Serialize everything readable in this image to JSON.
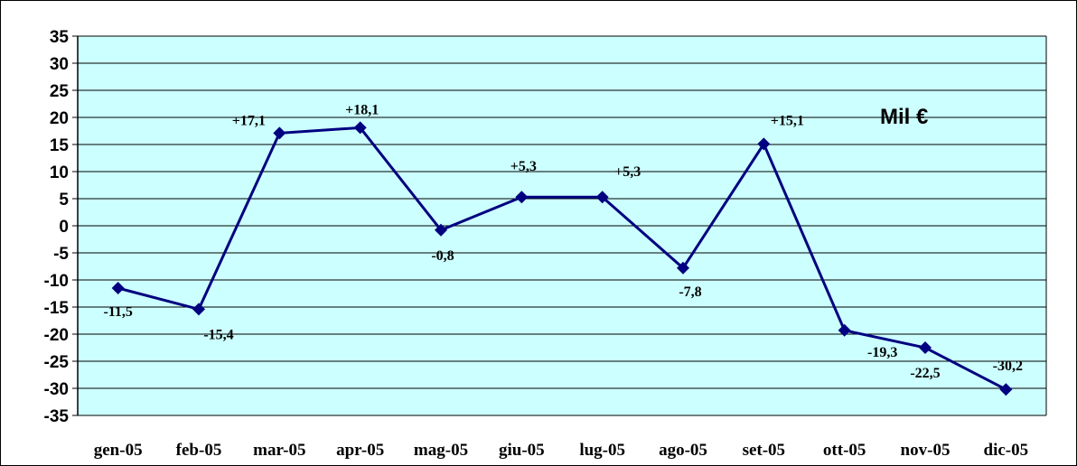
{
  "chart_data": {
    "type": "line",
    "categories": [
      "gen-05",
      "feb-05",
      "mar-05",
      "apr-05",
      "mag-05",
      "giu-05",
      "lug-05",
      "ago-05",
      "set-05",
      "ott-05",
      "nov-05",
      "dic-05"
    ],
    "values": [
      -11.5,
      -15.4,
      17.1,
      18.1,
      -0.8,
      5.3,
      5.3,
      -7.8,
      15.1,
      -19.3,
      -22.5,
      -30.2
    ],
    "data_labels": [
      "-11,5",
      "-15,4",
      "+17,1",
      "+18,1",
      "-0,8",
      "+5,3",
      "+5,3",
      "-7,8",
      "+15,1",
      "-19,3",
      "-22,5",
      "-30,2"
    ],
    "unit_label": "Mil €",
    "yticks": [
      "35",
      "30",
      "25",
      "20",
      "15",
      "10",
      "5",
      "0",
      "-5",
      "-10",
      "-15",
      "-20",
      "-25",
      "-30",
      "-35"
    ],
    "ylim": [
      -35,
      35
    ],
    "grid": true,
    "colors": {
      "plot_bg": "#ccffff",
      "line": "#000080",
      "marker": "#000080",
      "grid": "#000000"
    }
  }
}
